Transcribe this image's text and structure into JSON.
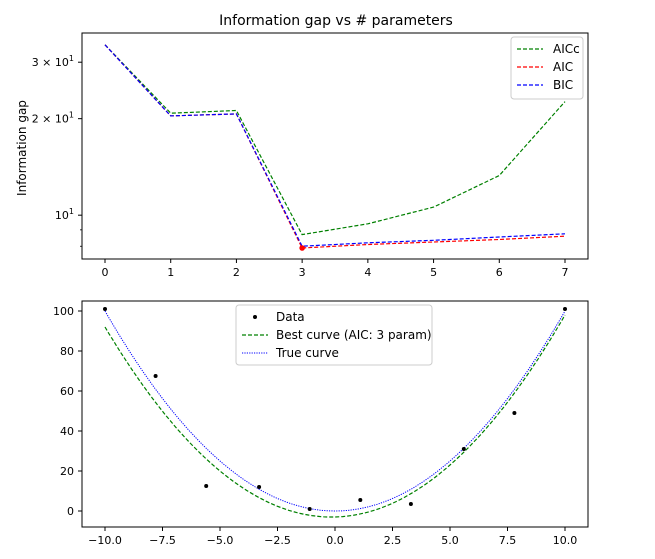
{
  "chart_data": [
    {
      "type": "line",
      "title": "Information gap vs # parameters",
      "xlabel": "",
      "ylabel": "Information gap",
      "yscale": "log",
      "xlim": [
        -0.35,
        7.35
      ],
      "ylim": [
        7.3,
        37
      ],
      "x_ticks": [
        "0",
        "1",
        "2",
        "3",
        "4",
        "5",
        "6",
        "7"
      ],
      "y_ticks": [
        {
          "value": 10,
          "label": "10"
        },
        {
          "value": 20,
          "label": "2 × 10"
        },
        {
          "value": 30,
          "label": "3 × 10"
        }
      ],
      "y_tick_superscript": "1",
      "legend_position": "upper right",
      "x": [
        0,
        1,
        2,
        3,
        4,
        5,
        6,
        7
      ],
      "series": [
        {
          "name": "AICc",
          "color": "#008000",
          "dash": "dashed",
          "values": [
            34,
            20.8,
            21.2,
            8.7,
            9.4,
            10.6,
            13.3,
            22.6
          ]
        },
        {
          "name": "AIC",
          "color": "#ff0000",
          "dash": "dashed",
          "values": [
            34,
            20.4,
            20.7,
            7.9,
            8.1,
            8.25,
            8.4,
            8.6
          ]
        },
        {
          "name": "BIC",
          "color": "#0000ff",
          "dash": "dashed",
          "values": [
            34,
            20.4,
            20.7,
            8.0,
            8.2,
            8.35,
            8.55,
            8.75
          ]
        }
      ],
      "highlight_point": {
        "x": 3,
        "y": 7.9,
        "color": "#ff0000"
      }
    },
    {
      "type": "scatter",
      "title": "",
      "xlabel": "",
      "ylabel": "",
      "xlim": [
        -11,
        11
      ],
      "ylim": [
        -8,
        105
      ],
      "x_ticks": [
        "−10.0",
        "−7.5",
        "−5.0",
        "−2.5",
        "0.0",
        "2.5",
        "5.0",
        "7.5",
        "10.0"
      ],
      "x_tick_values": [
        -10,
        -7.5,
        -5,
        -2.5,
        0,
        2.5,
        5,
        7.5,
        10
      ],
      "y_ticks": [
        "0",
        "20",
        "40",
        "60",
        "80",
        "100"
      ],
      "y_tick_values": [
        0,
        20,
        40,
        60,
        80,
        100
      ],
      "legend_position": "upper center",
      "data_points": {
        "name": "Data",
        "color": "#000000",
        "x": [
          -10.0,
          -7.8,
          -5.6,
          -3.3,
          -1.1,
          1.1,
          3.3,
          5.6,
          7.8,
          10.0
        ],
        "y": [
          101,
          67.5,
          12.5,
          12,
          1,
          5.5,
          3.5,
          31,
          49,
          101
        ]
      },
      "best_curve": {
        "name": "Best curve (AIC: 3 param)",
        "color": "#008000",
        "dash": "dashed",
        "coefficients": [
          -3,
          0.3,
          0.98
        ]
      },
      "true_curve": {
        "name": "True curve",
        "color": "#0000ff",
        "dash": "dotted",
        "coefficients": [
          0,
          0,
          1
        ]
      }
    }
  ]
}
